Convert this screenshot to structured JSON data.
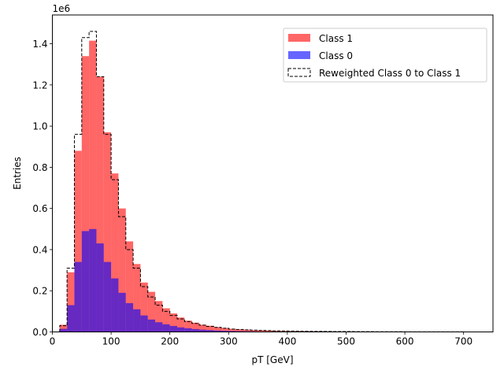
{
  "chart_data": {
    "type": "histogram",
    "xlabel": "pT [GeV]",
    "ylabel": "Entries",
    "y_offset_label": "1e6",
    "xlim": [
      0,
      750
    ],
    "ylim": [
      0,
      1.54
    ],
    "bin_width": 12.5,
    "x_ticks": [
      0,
      100,
      200,
      300,
      400,
      500,
      600,
      700
    ],
    "x_tick_labels": [
      "0",
      "100",
      "200",
      "300",
      "400",
      "500",
      "600",
      "700"
    ],
    "y_ticks": [
      0,
      0.2,
      0.4,
      0.6,
      0.8,
      1.0,
      1.2,
      1.4
    ],
    "y_tick_labels": [
      "0.0",
      "0.2",
      "0.4",
      "0.6",
      "0.8",
      "1.0",
      "1.2",
      "1.4"
    ],
    "legend_position": "top-right",
    "grid": false,
    "series": [
      {
        "name": "Class 1",
        "style": "filled",
        "color": "#ff0000",
        "opacity": 0.6,
        "bin_starts": [
          12.5,
          25,
          37.5,
          50,
          62.5,
          75,
          87.5,
          100,
          112.5,
          125,
          137.5,
          150,
          162.5,
          175,
          187.5,
          200,
          212.5,
          225,
          237.5,
          250,
          262.5,
          275,
          287.5,
          300,
          312.5,
          325,
          337.5,
          350,
          362.5,
          375,
          387.5,
          400,
          412.5,
          425,
          437.5,
          450,
          462.5,
          475,
          487.5,
          500,
          512.5,
          525,
          537.5,
          550,
          562.5,
          575,
          587.5,
          600,
          612.5,
          625,
          637.5,
          650,
          662.5,
          675,
          687.5,
          700,
          712.5
        ],
        "values": [
          0.035,
          0.29,
          0.88,
          1.34,
          1.415,
          1.24,
          0.97,
          0.77,
          0.6,
          0.44,
          0.33,
          0.24,
          0.195,
          0.15,
          0.115,
          0.09,
          0.07,
          0.055,
          0.045,
          0.035,
          0.03,
          0.024,
          0.019,
          0.015,
          0.013,
          0.011,
          0.009,
          0.008,
          0.007,
          0.006,
          0.005,
          0.0045,
          0.004,
          0.0035,
          0.003,
          0.0028,
          0.0025,
          0.0022,
          0.002,
          0.0018,
          0.0016,
          0.0014,
          0.0013,
          0.0012,
          0.0011,
          0.001,
          0.0009,
          0.0008,
          0.0007,
          0.0006,
          0.0005,
          0.0004,
          0.0004,
          0.0003,
          0.0003,
          0.0002,
          0.0002
        ]
      },
      {
        "name": "Class 0",
        "style": "filled",
        "color": "#0000ff",
        "opacity": 0.6,
        "bin_starts": [
          12.5,
          25,
          37.5,
          50,
          62.5,
          75,
          87.5,
          100,
          112.5,
          125,
          137.5,
          150,
          162.5,
          175,
          187.5,
          200,
          212.5,
          225,
          237.5,
          250,
          262.5,
          275,
          287.5,
          300,
          312.5,
          325,
          337.5,
          350,
          362.5,
          375,
          387.5,
          400,
          412.5,
          425,
          437.5,
          450,
          462.5,
          475,
          487.5,
          500,
          512.5,
          525,
          537.5,
          550,
          562.5,
          575,
          587.5,
          600,
          612.5,
          625,
          637.5,
          650,
          662.5,
          675,
          687.5,
          700,
          712.5
        ],
        "values": [
          0.015,
          0.13,
          0.34,
          0.49,
          0.5,
          0.43,
          0.34,
          0.26,
          0.19,
          0.14,
          0.11,
          0.08,
          0.06,
          0.047,
          0.037,
          0.029,
          0.022,
          0.018,
          0.014,
          0.011,
          0.009,
          0.007,
          0.0055,
          0.0045,
          0.0036,
          0.003,
          0.0025,
          0.002,
          0.0017,
          0.0014,
          0.0012,
          0.001,
          0.0009,
          0.0008,
          0.0007,
          0.0006,
          0.0005,
          0.0005,
          0.0004,
          0.0004,
          0.0003,
          0.0003,
          0.0003,
          0.0002,
          0.0002,
          0.0002,
          0.0002,
          0.0001,
          0.0001,
          0.0001,
          0.0001,
          0.0001,
          0.0001,
          0.0001,
          0.0001,
          0.0001,
          0.0001
        ]
      },
      {
        "name": "Reweighted Class 0 to Class 1",
        "style": "step-dashed",
        "color": "#000000",
        "bin_starts": [
          12.5,
          25,
          37.5,
          50,
          62.5,
          75,
          87.5,
          100,
          112.5,
          125,
          137.5,
          150,
          162.5,
          175,
          187.5,
          200,
          212.5,
          225,
          237.5,
          250,
          262.5,
          275,
          287.5,
          300,
          312.5,
          325,
          337.5,
          350,
          362.5,
          375,
          387.5,
          400,
          412.5,
          425,
          437.5,
          450,
          462.5,
          475,
          487.5,
          500,
          512.5,
          525,
          537.5,
          550,
          562.5,
          575,
          587.5,
          600,
          612.5,
          625,
          637.5,
          650,
          662.5,
          675,
          687.5,
          700,
          712.5
        ],
        "values": [
          0.03,
          0.31,
          0.96,
          1.43,
          1.46,
          1.24,
          0.96,
          0.74,
          0.56,
          0.4,
          0.31,
          0.22,
          0.17,
          0.13,
          0.1,
          0.08,
          0.063,
          0.05,
          0.041,
          0.033,
          0.027,
          0.022,
          0.018,
          0.014,
          0.012,
          0.01,
          0.0085,
          0.0075,
          0.0065,
          0.0055,
          0.0047,
          0.0042,
          0.0037,
          0.0033,
          0.003,
          0.0027,
          0.0024,
          0.0021,
          0.0019,
          0.0017,
          0.0015,
          0.0013,
          0.0012,
          0.0011,
          0.001,
          0.0009,
          0.0008,
          0.0007,
          0.0006,
          0.0005,
          0.0005,
          0.0004,
          0.0004,
          0.0003,
          0.0003,
          0.0002,
          0.0002
        ]
      }
    ]
  }
}
